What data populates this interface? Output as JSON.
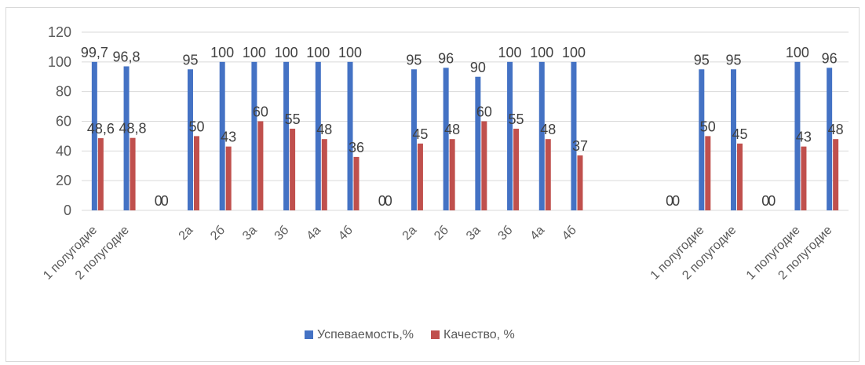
{
  "chart_data": {
    "type": "bar",
    "ylim": [
      0,
      120
    ],
    "ytick_step": 20,
    "grid": true,
    "legend_position": "bottom",
    "categories": [
      "1 полугодие",
      "2 полугодие",
      "",
      "2а",
      "2б",
      "3а",
      "3б",
      "4а",
      "4б",
      "",
      "2а",
      "2б",
      "3а",
      "3б",
      "4а",
      "4б",
      "",
      "",
      "",
      "1 полугодие",
      "2 полугодие",
      "",
      "1 полугодие",
      "2 полугодие"
    ],
    "series": [
      {
        "name": "Успеваемость,%",
        "color": "#4472c4",
        "values": [
          100,
          97,
          0,
          95,
          100,
          100,
          100,
          100,
          100,
          0,
          95,
          96,
          90,
          100,
          100,
          100,
          null,
          null,
          0,
          95,
          95,
          0,
          100,
          96
        ],
        "labels": [
          "99,7",
          "96,8",
          "0",
          "95",
          "100",
          "100",
          "100",
          "100",
          "100",
          "0",
          "95",
          "96",
          "90",
          "100",
          "100",
          "100",
          "",
          "",
          "0",
          "95",
          "95",
          "0",
          "100",
          "96"
        ]
      },
      {
        "name": "Качество, %",
        "color": "#c0504d",
        "values": [
          48.6,
          48.8,
          0,
          50,
          43,
          60,
          55,
          48,
          36,
          0,
          45,
          48,
          60,
          55,
          48,
          37,
          null,
          null,
          0,
          50,
          45,
          0,
          43,
          48
        ],
        "labels": [
          "48,6",
          "48,8",
          "0",
          "50",
          "43",
          "60",
          "55",
          "48",
          "36",
          "0",
          "45",
          "48",
          "60",
          "55",
          "48",
          "37",
          "",
          "",
          "0",
          "50",
          "45",
          "0",
          "43",
          "48"
        ]
      }
    ]
  }
}
